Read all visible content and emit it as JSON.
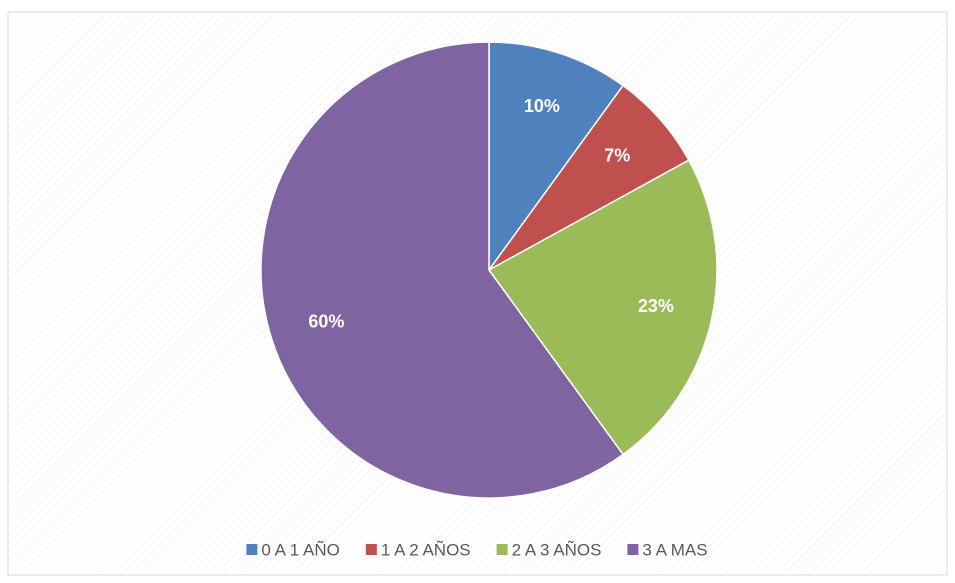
{
  "chart_data": {
    "type": "pie",
    "categories": [
      "0 A 1 AÑO",
      "1 A 2 AÑOS",
      "2 A 3 AÑOS",
      "3 A MAS"
    ],
    "values": [
      10,
      7,
      23,
      60
    ],
    "value_labels": [
      "10%",
      "7%",
      "23%",
      "60%"
    ],
    "colors": [
      "#4f81bd",
      "#c0504d",
      "#9bbb59",
      "#8064a2"
    ],
    "legend": "bottom"
  }
}
